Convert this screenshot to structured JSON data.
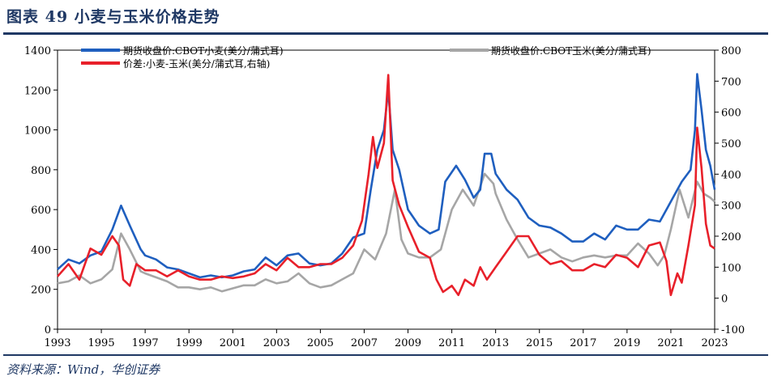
{
  "title": "图表 49  小麦与玉米价格走势",
  "source": "资料来源：Wind，华创证券",
  "colors": {
    "title": "#1F3864",
    "wheat": "#1F5FBF",
    "corn": "#A6A6A6",
    "spread": "#E8202A"
  },
  "chart_data": {
    "type": "line",
    "legend": {
      "placement": "top"
    },
    "grid": false,
    "x_ticks": [
      "1993",
      "1995",
      "1997",
      "1999",
      "2001",
      "2003",
      "2005",
      "2007",
      "2009",
      "2011",
      "2013",
      "2015",
      "2017",
      "2019",
      "2021",
      "2023"
    ],
    "x_range": [
      1993,
      2023
    ],
    "y_left": {
      "ticks": [
        "0",
        "200",
        "400",
        "600",
        "800",
        "1000",
        "1200",
        "1400"
      ],
      "range": [
        0,
        1400
      ]
    },
    "y_right": {
      "ticks": [
        "-100",
        "0",
        "100",
        "200",
        "300",
        "400",
        "500",
        "600",
        "700",
        "800"
      ],
      "range": [
        -100,
        800
      ]
    },
    "series": [
      {
        "name": "期货收盘价:CBOT小麦(美分/蒲式耳)",
        "axis": "left",
        "color": "#1F5FBF",
        "points": [
          [
            1993,
            300
          ],
          [
            1993.5,
            350
          ],
          [
            1994,
            330
          ],
          [
            1994.5,
            370
          ],
          [
            1995,
            390
          ],
          [
            1995.5,
            500
          ],
          [
            1995.9,
            620
          ],
          [
            1996.3,
            520
          ],
          [
            1996.8,
            400
          ],
          [
            1997,
            370
          ],
          [
            1997.5,
            350
          ],
          [
            1998,
            310
          ],
          [
            1998.5,
            300
          ],
          [
            1999,
            280
          ],
          [
            1999.5,
            260
          ],
          [
            2000,
            270
          ],
          [
            2000.5,
            260
          ],
          [
            2001,
            270
          ],
          [
            2001.5,
            290
          ],
          [
            2002,
            300
          ],
          [
            2002.5,
            360
          ],
          [
            2003,
            320
          ],
          [
            2003.5,
            370
          ],
          [
            2004,
            380
          ],
          [
            2004.5,
            330
          ],
          [
            2005,
            320
          ],
          [
            2005.5,
            330
          ],
          [
            2006,
            380
          ],
          [
            2006.5,
            460
          ],
          [
            2007,
            480
          ],
          [
            2007.3,
            700
          ],
          [
            2007.6,
            900
          ],
          [
            2007.9,
            1000
          ],
          [
            2008.1,
            1200
          ],
          [
            2008.3,
            900
          ],
          [
            2008.6,
            800
          ],
          [
            2009,
            600
          ],
          [
            2009.5,
            520
          ],
          [
            2010,
            480
          ],
          [
            2010.4,
            500
          ],
          [
            2010.7,
            740
          ],
          [
            2011.2,
            820
          ],
          [
            2011.6,
            750
          ],
          [
            2012,
            660
          ],
          [
            2012.3,
            700
          ],
          [
            2012.5,
            880
          ],
          [
            2012.8,
            880
          ],
          [
            2013,
            780
          ],
          [
            2013.5,
            700
          ],
          [
            2014,
            650
          ],
          [
            2014.5,
            560
          ],
          [
            2015,
            520
          ],
          [
            2015.5,
            510
          ],
          [
            2016,
            480
          ],
          [
            2016.5,
            440
          ],
          [
            2017,
            440
          ],
          [
            2017.5,
            480
          ],
          [
            2018,
            450
          ],
          [
            2018.5,
            520
          ],
          [
            2019,
            500
          ],
          [
            2019.5,
            500
          ],
          [
            2020,
            550
          ],
          [
            2020.5,
            540
          ],
          [
            2021,
            640
          ],
          [
            2021.5,
            740
          ],
          [
            2021.9,
            800
          ],
          [
            2022.1,
            1000
          ],
          [
            2022.2,
            1280
          ],
          [
            2022.4,
            1100
          ],
          [
            2022.6,
            900
          ],
          [
            2022.8,
            820
          ],
          [
            2023,
            700
          ]
        ]
      },
      {
        "name": "期货收盘价:CBOT玉米(美分/蒲式耳)",
        "axis": "left",
        "color": "#A6A6A6",
        "points": [
          [
            1993,
            230
          ],
          [
            1993.5,
            240
          ],
          [
            1994,
            270
          ],
          [
            1994.5,
            230
          ],
          [
            1995,
            250
          ],
          [
            1995.5,
            300
          ],
          [
            1995.9,
            480
          ],
          [
            1996.3,
            400
          ],
          [
            1996.8,
            290
          ],
          [
            1997,
            280
          ],
          [
            1997.5,
            260
          ],
          [
            1998,
            240
          ],
          [
            1998.5,
            210
          ],
          [
            1999,
            210
          ],
          [
            1999.5,
            200
          ],
          [
            2000,
            210
          ],
          [
            2000.5,
            190
          ],
          [
            2001,
            205
          ],
          [
            2001.5,
            220
          ],
          [
            2002,
            220
          ],
          [
            2002.5,
            250
          ],
          [
            2003,
            230
          ],
          [
            2003.5,
            240
          ],
          [
            2004,
            280
          ],
          [
            2004.5,
            230
          ],
          [
            2005,
            210
          ],
          [
            2005.5,
            220
          ],
          [
            2006,
            250
          ],
          [
            2006.5,
            280
          ],
          [
            2007,
            400
          ],
          [
            2007.5,
            350
          ],
          [
            2008,
            480
          ],
          [
            2008.4,
            700
          ],
          [
            2008.7,
            450
          ],
          [
            2009,
            380
          ],
          [
            2009.5,
            360
          ],
          [
            2010,
            360
          ],
          [
            2010.5,
            400
          ],
          [
            2011,
            600
          ],
          [
            2011.5,
            700
          ],
          [
            2012,
            620
          ],
          [
            2012.5,
            780
          ],
          [
            2012.9,
            730
          ],
          [
            2013,
            680
          ],
          [
            2013.5,
            550
          ],
          [
            2014,
            450
          ],
          [
            2014.5,
            360
          ],
          [
            2015,
            380
          ],
          [
            2015.5,
            400
          ],
          [
            2016,
            360
          ],
          [
            2016.5,
            340
          ],
          [
            2017,
            360
          ],
          [
            2017.5,
            370
          ],
          [
            2018,
            360
          ],
          [
            2018.5,
            370
          ],
          [
            2019,
            370
          ],
          [
            2019.5,
            430
          ],
          [
            2020,
            380
          ],
          [
            2020.4,
            320
          ],
          [
            2020.7,
            370
          ],
          [
            2021,
            500
          ],
          [
            2021.4,
            700
          ],
          [
            2021.8,
            560
          ],
          [
            2022.2,
            740
          ],
          [
            2022.5,
            680
          ],
          [
            2022.8,
            660
          ],
          [
            2023,
            640
          ]
        ]
      },
      {
        "name": "价差:小麦-玉米(美分/蒲式耳,右轴)",
        "axis": "right",
        "color": "#E8202A",
        "points": [
          [
            1993,
            70
          ],
          [
            1993.5,
            110
          ],
          [
            1994,
            60
          ],
          [
            1994.5,
            160
          ],
          [
            1995,
            140
          ],
          [
            1995.5,
            200
          ],
          [
            1995.8,
            170
          ],
          [
            1996,
            60
          ],
          [
            1996.3,
            40
          ],
          [
            1996.6,
            110
          ],
          [
            1997,
            90
          ],
          [
            1997.5,
            90
          ],
          [
            1998,
            70
          ],
          [
            1998.5,
            90
          ],
          [
            1999,
            70
          ],
          [
            1999.5,
            60
          ],
          [
            2000,
            60
          ],
          [
            2000.5,
            70
          ],
          [
            2001,
            65
          ],
          [
            2001.5,
            70
          ],
          [
            2002,
            80
          ],
          [
            2002.5,
            110
          ],
          [
            2003,
            90
          ],
          [
            2003.5,
            130
          ],
          [
            2004,
            100
          ],
          [
            2004.5,
            100
          ],
          [
            2005,
            110
          ],
          [
            2005.5,
            110
          ],
          [
            2006,
            130
          ],
          [
            2006.5,
            170
          ],
          [
            2006.9,
            250
          ],
          [
            2007.2,
            400
          ],
          [
            2007.4,
            520
          ],
          [
            2007.6,
            420
          ],
          [
            2007.9,
            500
          ],
          [
            2008.1,
            720
          ],
          [
            2008.3,
            380
          ],
          [
            2008.6,
            300
          ],
          [
            2009,
            230
          ],
          [
            2009.5,
            150
          ],
          [
            2010,
            130
          ],
          [
            2010.3,
            60
          ],
          [
            2010.6,
            20
          ],
          [
            2011,
            40
          ],
          [
            2011.3,
            10
          ],
          [
            2011.6,
            60
          ],
          [
            2012,
            40
          ],
          [
            2012.3,
            100
          ],
          [
            2012.6,
            60
          ],
          [
            2013,
            100
          ],
          [
            2013.5,
            150
          ],
          [
            2014,
            200
          ],
          [
            2014.5,
            200
          ],
          [
            2015,
            140
          ],
          [
            2015.5,
            110
          ],
          [
            2016,
            120
          ],
          [
            2016.5,
            90
          ],
          [
            2017,
            90
          ],
          [
            2017.5,
            110
          ],
          [
            2018,
            100
          ],
          [
            2018.5,
            140
          ],
          [
            2019,
            130
          ],
          [
            2019.5,
            100
          ],
          [
            2020,
            170
          ],
          [
            2020.5,
            180
          ],
          [
            2020.8,
            120
          ],
          [
            2021,
            10
          ],
          [
            2021.3,
            80
          ],
          [
            2021.5,
            50
          ],
          [
            2021.8,
            170
          ],
          [
            2022.1,
            300
          ],
          [
            2022.2,
            550
          ],
          [
            2022.4,
            420
          ],
          [
            2022.6,
            240
          ],
          [
            2022.8,
            170
          ],
          [
            2023,
            160
          ]
        ]
      }
    ]
  }
}
